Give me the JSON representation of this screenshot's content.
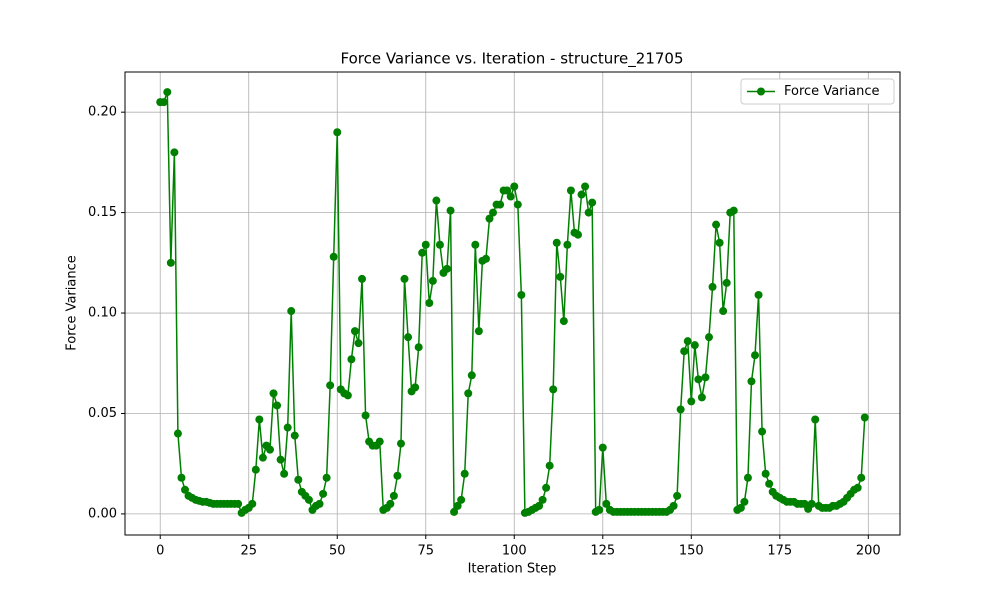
{
  "chart_data": {
    "type": "line",
    "title": "Force Variance vs. Iteration - structure_21705",
    "xlabel": "Iteration Step",
    "ylabel": "Force Variance",
    "x": [
      0,
      1,
      2,
      3,
      4,
      5,
      6,
      7,
      8,
      9,
      10,
      11,
      12,
      13,
      14,
      15,
      16,
      17,
      18,
      19,
      20,
      21,
      22,
      23,
      24,
      25,
      26,
      27,
      28,
      29,
      30,
      31,
      32,
      33,
      34,
      35,
      36,
      37,
      38,
      39,
      40,
      41,
      42,
      43,
      44,
      45,
      46,
      47,
      48,
      49,
      50,
      51,
      52,
      53,
      54,
      55,
      56,
      57,
      58,
      59,
      60,
      61,
      62,
      63,
      64,
      65,
      66,
      67,
      68,
      69,
      70,
      71,
      72,
      73,
      74,
      75,
      76,
      77,
      78,
      79,
      80,
      81,
      82,
      83,
      84,
      85,
      86,
      87,
      88,
      89,
      90,
      91,
      92,
      93,
      94,
      95,
      96,
      97,
      98,
      99,
      100,
      101,
      102,
      103,
      104,
      105,
      106,
      107,
      108,
      109,
      110,
      111,
      112,
      113,
      114,
      115,
      116,
      117,
      118,
      119,
      120,
      121,
      122,
      123,
      124,
      125,
      126,
      127,
      128,
      129,
      130,
      131,
      132,
      133,
      134,
      135,
      136,
      137,
      138,
      139,
      140,
      141,
      142,
      143,
      144,
      145,
      146,
      147,
      148,
      149,
      150,
      151,
      152,
      153,
      154,
      155,
      156,
      157,
      158,
      159,
      160,
      161,
      162,
      163,
      164,
      165,
      166,
      167,
      168,
      169,
      170,
      171,
      172,
      173,
      174,
      175,
      176,
      177,
      178,
      179,
      180,
      181,
      182,
      183,
      184,
      185,
      186,
      187,
      188,
      189,
      190,
      191,
      192,
      193,
      194,
      195,
      196,
      197,
      198,
      199
    ],
    "series": [
      {
        "name": "Force Variance",
        "color": "#008000",
        "values": [
          0.205,
          0.205,
          0.21,
          0.125,
          0.18,
          0.04,
          0.018,
          0.012,
          0.009,
          0.008,
          0.007,
          0.0065,
          0.006,
          0.006,
          0.0055,
          0.005,
          0.005,
          0.005,
          0.005,
          0.005,
          0.005,
          0.005,
          0.005,
          0.0005,
          0.002,
          0.003,
          0.005,
          0.022,
          0.047,
          0.028,
          0.034,
          0.032,
          0.06,
          0.054,
          0.027,
          0.02,
          0.043,
          0.101,
          0.039,
          0.017,
          0.011,
          0.009,
          0.007,
          0.002,
          0.004,
          0.005,
          0.01,
          0.018,
          0.064,
          0.128,
          0.19,
          0.062,
          0.06,
          0.059,
          0.077,
          0.091,
          0.085,
          0.117,
          0.049,
          0.036,
          0.034,
          0.034,
          0.036,
          0.002,
          0.003,
          0.005,
          0.009,
          0.019,
          0.035,
          0.117,
          0.088,
          0.061,
          0.063,
          0.083,
          0.13,
          0.134,
          0.105,
          0.116,
          0.156,
          0.134,
          0.12,
          0.122,
          0.151,
          0.001,
          0.004,
          0.007,
          0.02,
          0.06,
          0.069,
          0.134,
          0.091,
          0.126,
          0.127,
          0.147,
          0.15,
          0.154,
          0.154,
          0.161,
          0.161,
          0.158,
          0.163,
          0.154,
          0.109,
          0.0005,
          0.001,
          0.002,
          0.003,
          0.004,
          0.007,
          0.013,
          0.024,
          0.062,
          0.135,
          0.118,
          0.096,
          0.134,
          0.161,
          0.14,
          0.139,
          0.159,
          0.163,
          0.15,
          0.155,
          0.001,
          0.002,
          0.033,
          0.005,
          0.002,
          0.001,
          0.001,
          0.001,
          0.001,
          0.001,
          0.001,
          0.001,
          0.001,
          0.001,
          0.001,
          0.001,
          0.001,
          0.001,
          0.001,
          0.001,
          0.001,
          0.002,
          0.004,
          0.009,
          0.052,
          0.081,
          0.086,
          0.056,
          0.084,
          0.067,
          0.058,
          0.068,
          0.088,
          0.113,
          0.144,
          0.135,
          0.101,
          0.115,
          0.15,
          0.151,
          0.002,
          0.003,
          0.006,
          0.018,
          0.066,
          0.079,
          0.109,
          0.041,
          0.02,
          0.015,
          0.011,
          0.009,
          0.008,
          0.007,
          0.006,
          0.006,
          0.006,
          0.005,
          0.005,
          0.005,
          0.0025,
          0.005,
          0.047,
          0.004,
          0.003,
          0.003,
          0.003,
          0.004,
          0.004,
          0.005,
          0.006,
          0.008,
          0.01,
          0.012,
          0.013,
          0.018,
          0.048
        ]
      }
    ],
    "xlim": [
      -9.95,
      208.95
    ],
    "xticks": [
      0,
      25,
      50,
      75,
      100,
      125,
      150,
      175,
      200
    ],
    "ylim": [
      -0.0105,
      0.22
    ],
    "yticks": [
      {
        "value": 0,
        "label": "0.00"
      },
      {
        "value": 0.05,
        "label": "0.05"
      },
      {
        "value": 0.1,
        "label": "0.10"
      },
      {
        "value": 0.15,
        "label": "0.15"
      },
      {
        "value": 0.2,
        "label": "0.20"
      }
    ],
    "grid": true,
    "legend": "upper right"
  }
}
